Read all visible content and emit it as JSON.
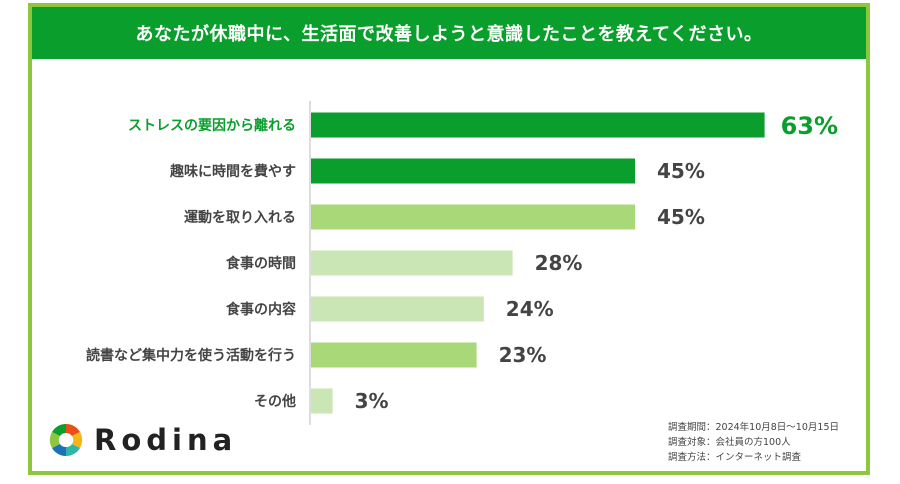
{
  "header": {
    "title": "あなたが休職中に、生活面で改善しようと意識したことを教えてください。"
  },
  "chart_data": {
    "type": "bar",
    "orientation": "horizontal",
    "categories": [
      "ストレスの要因から離れる",
      "趣味に時間を費やす",
      "運動を取り入れる",
      "食事の時間",
      "食事の内容",
      "読書など集中力を使う活動を行う",
      "その他"
    ],
    "values": [
      63,
      45,
      45,
      28,
      24,
      23,
      3
    ],
    "value_labels": [
      "63%",
      "45%",
      "45%",
      "28%",
      "24%",
      "23%",
      "3%"
    ],
    "unit": "%",
    "xlim": [
      0,
      100
    ],
    "grid": false,
    "legend": "none",
    "bar_colors": [
      "#0a9e2c",
      "#0a9e2c",
      "#a8d878",
      "#c9e6b4",
      "#c9e6b4",
      "#a8d878",
      "#c9e6b4"
    ],
    "highlight_label_color": "#0a9e2c",
    "label_color": "#444444"
  },
  "brand": {
    "name": "Rodina"
  },
  "survey_notes": {
    "period": "調査期間：2024年10月8日〜10月15日",
    "target": "調査対象：会社員の方100人",
    "method": "調査方法：インターネット調査"
  },
  "colors": {
    "frame": "#8dc63f",
    "header_bg": "#0a9e2c",
    "header_text": "#ffffff"
  }
}
